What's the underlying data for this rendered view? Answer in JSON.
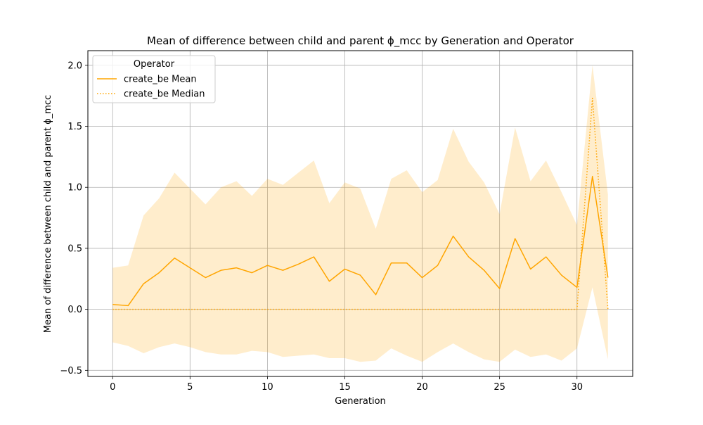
{
  "chart_data": {
    "type": "line",
    "title": "Mean of difference between child and parent ϕ_mcc by Generation and Operator",
    "xlabel": "Generation",
    "ylabel": "Mean of difference between child and parent ϕ_mcc",
    "xlim": [
      -1.6,
      33.6
    ],
    "ylim": [
      -0.55,
      2.12
    ],
    "xticks": [
      0,
      5,
      10,
      15,
      20,
      25,
      30
    ],
    "yticks": [
      -0.5,
      0.0,
      0.5,
      1.0,
      1.5,
      2.0
    ],
    "ytick_labels": [
      "−0.5",
      "0.0",
      "0.5",
      "1.0",
      "1.5",
      "2.0"
    ],
    "grid": true,
    "legend": {
      "title": "Operator",
      "position": "top-left",
      "entries": [
        {
          "label": "create_be Mean",
          "style": "solid"
        },
        {
          "label": "create_be Median",
          "style": "dotted"
        }
      ]
    },
    "color": "#ffa500",
    "band_color": "#ffa500",
    "band_opacity": 0.2,
    "x": [
      0,
      1,
      2,
      3,
      4,
      5,
      6,
      7,
      8,
      9,
      10,
      11,
      12,
      13,
      14,
      15,
      16,
      17,
      18,
      19,
      20,
      21,
      22,
      23,
      24,
      25,
      26,
      27,
      28,
      29,
      30,
      31,
      32
    ],
    "series": [
      {
        "name": "create_be Mean",
        "style": "solid",
        "values": [
          0.04,
          0.03,
          0.21,
          0.3,
          0.42,
          0.34,
          0.26,
          0.32,
          0.34,
          0.3,
          0.36,
          0.32,
          0.37,
          0.43,
          0.23,
          0.33,
          0.28,
          0.12,
          0.38,
          0.38,
          0.26,
          0.36,
          0.6,
          0.43,
          0.32,
          0.17,
          0.58,
          0.33,
          0.43,
          0.28,
          0.18,
          1.09,
          0.26
        ]
      },
      {
        "name": "create_be Median",
        "style": "dotted",
        "values": [
          0,
          0,
          0,
          0,
          0,
          0,
          0,
          0,
          0,
          0,
          0,
          0,
          0,
          0,
          0,
          0,
          0,
          0,
          0,
          0,
          0,
          0,
          0,
          0,
          0,
          0,
          0,
          0,
          0,
          0,
          0,
          1.73,
          0
        ]
      }
    ],
    "band": {
      "upper": [
        0.34,
        0.36,
        0.77,
        0.91,
        1.12,
        0.99,
        0.86,
        1.0,
        1.05,
        0.93,
        1.07,
        1.02,
        1.12,
        1.22,
        0.87,
        1.04,
        0.99,
        0.66,
        1.07,
        1.14,
        0.96,
        1.06,
        1.48,
        1.21,
        1.04,
        0.78,
        1.49,
        1.05,
        1.22,
        0.96,
        0.69,
        2.0,
        0.94
      ],
      "lower": [
        -0.27,
        -0.3,
        -0.36,
        -0.31,
        -0.28,
        -0.31,
        -0.35,
        -0.37,
        -0.37,
        -0.34,
        -0.35,
        -0.39,
        -0.38,
        -0.37,
        -0.4,
        -0.4,
        -0.43,
        -0.42,
        -0.32,
        -0.38,
        -0.43,
        -0.35,
        -0.28,
        -0.35,
        -0.41,
        -0.43,
        -0.33,
        -0.39,
        -0.37,
        -0.42,
        -0.32,
        0.18,
        -0.41
      ]
    }
  }
}
